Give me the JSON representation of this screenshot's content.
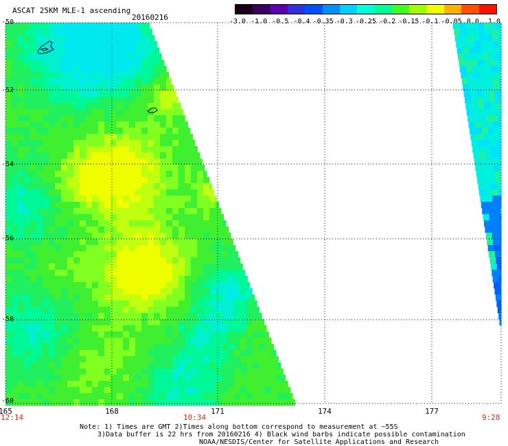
{
  "title": "ASCAT 25KM MLE-1 ascending",
  "date": "20160216",
  "colorbar": {
    "ticks": [
      "-3.0",
      "-1.0",
      "-0.5",
      "-0.4",
      "-0.35",
      "-0.3",
      "-0.25",
      "-0.2",
      "-0.15",
      "-0.1",
      "-0.05",
      "0.0",
      "1.0"
    ],
    "colors": [
      "#1a0018",
      "#3a0060",
      "#5a00b0",
      "#3030e0",
      "#0050ff",
      "#0090ff",
      "#00d0ff",
      "#00ffd8",
      "#00ff90",
      "#40ff20",
      "#a0ff00",
      "#f0ff00",
      "#ffb000",
      "#ff5000",
      "#ff1000"
    ]
  },
  "y_axis": {
    "labels": [
      "-50",
      "-52",
      "-54",
      "-56",
      "-58",
      "-60"
    ]
  },
  "x_axis": {
    "labels": [
      "165",
      "168",
      "171",
      "174",
      "177"
    ]
  },
  "time_labels": {
    "left": "12:14",
    "middle": "10:34",
    "right": "9:28"
  },
  "notes": [
    "Note: 1) Times are GMT 2)Times along bottom correspond to measurement at ~55S",
    "3)Data buffer is 22 hrs from 20160216 4) Black wind barbs indicate possible contamination",
    "NOAA/NESDIS/Center for Satellite Applications and Research"
  ]
}
